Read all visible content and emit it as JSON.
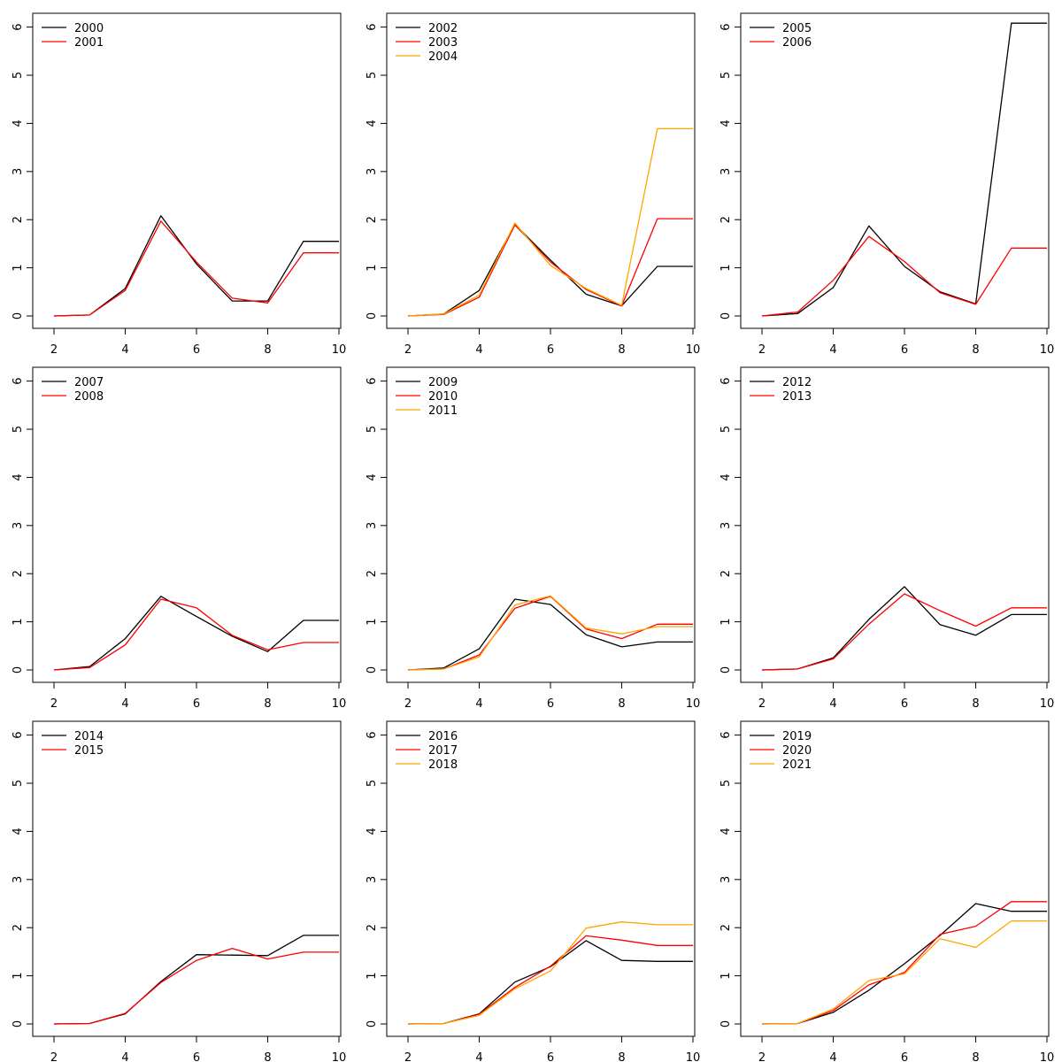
{
  "figure": {
    "rows": 3,
    "cols": 3
  },
  "series_colors": [
    "#000000",
    "#ff0000",
    "#ffa500"
  ],
  "chart_data": [
    {
      "type": "line",
      "x": [
        2,
        3,
        4,
        5,
        6,
        7,
        8,
        9,
        10
      ],
      "xlim": [
        2,
        10
      ],
      "ylim": [
        0,
        6.2
      ],
      "xticks": [
        "2",
        "4",
        "6",
        "8",
        "10"
      ],
      "yticks": [
        "0",
        "1",
        "2",
        "3",
        "4",
        "5",
        "6"
      ],
      "legend_position": "top-left",
      "series": [
        {
          "name": "2000",
          "values": [
            0,
            0.02,
            0.57,
            2.08,
            1.08,
            0.31,
            0.31,
            1.55,
            1.55
          ]
        },
        {
          "name": "2001",
          "values": [
            0,
            0.02,
            0.53,
            1.97,
            1.12,
            0.37,
            0.27,
            1.31,
            1.31
          ]
        }
      ]
    },
    {
      "type": "line",
      "x": [
        2,
        3,
        4,
        5,
        6,
        7,
        8,
        9,
        10
      ],
      "xlim": [
        2,
        10
      ],
      "ylim": [
        0,
        6.2
      ],
      "xticks": [
        "2",
        "4",
        "6",
        "8",
        "10"
      ],
      "yticks": [
        "0",
        "1",
        "2",
        "3",
        "4",
        "5",
        "6"
      ],
      "legend_position": "top-left",
      "series": [
        {
          "name": "2002",
          "values": [
            0,
            0.04,
            0.53,
            1.9,
            1.16,
            0.45,
            0.21,
            1.03,
            1.03
          ]
        },
        {
          "name": "2003",
          "values": [
            0,
            0.03,
            0.39,
            1.89,
            1.12,
            0.55,
            0.21,
            2.02,
            2.02
          ]
        },
        {
          "name": "2004",
          "values": [
            0,
            0.04,
            0.43,
            1.93,
            1.05,
            0.57,
            0.22,
            3.89,
            3.89
          ]
        }
      ]
    },
    {
      "type": "line",
      "x": [
        2,
        3,
        4,
        5,
        6,
        7,
        8,
        9,
        10
      ],
      "xlim": [
        2,
        10
      ],
      "ylim": [
        0,
        6.2
      ],
      "xticks": [
        "2",
        "4",
        "6",
        "8",
        "10"
      ],
      "yticks": [
        "0",
        "1",
        "2",
        "3",
        "4",
        "5",
        "6"
      ],
      "legend_position": "top-left",
      "series": [
        {
          "name": "2005",
          "values": [
            0,
            0.05,
            0.59,
            1.87,
            1.03,
            0.5,
            0.25,
            6.08,
            6.08
          ]
        },
        {
          "name": "2006",
          "values": [
            0,
            0.08,
            0.74,
            1.65,
            1.13,
            0.48,
            0.24,
            1.41,
            1.41
          ]
        }
      ]
    },
    {
      "type": "line",
      "x": [
        2,
        3,
        4,
        5,
        6,
        7,
        8,
        9,
        10
      ],
      "xlim": [
        2,
        10
      ],
      "ylim": [
        0,
        6.2
      ],
      "xticks": [
        "2",
        "4",
        "6",
        "8",
        "10"
      ],
      "yticks": [
        "0",
        "1",
        "2",
        "3",
        "4",
        "5",
        "6"
      ],
      "legend_position": "top-left",
      "series": [
        {
          "name": "2007",
          "values": [
            0,
            0.07,
            0.65,
            1.53,
            1.11,
            0.7,
            0.38,
            1.03,
            1.03
          ]
        },
        {
          "name": "2008",
          "values": [
            0,
            0.05,
            0.52,
            1.47,
            1.29,
            0.72,
            0.42,
            0.57,
            0.57
          ]
        }
      ]
    },
    {
      "type": "line",
      "x": [
        2,
        3,
        4,
        5,
        6,
        7,
        8,
        9,
        10
      ],
      "xlim": [
        2,
        10
      ],
      "ylim": [
        0,
        6.2
      ],
      "xticks": [
        "2",
        "4",
        "6",
        "8",
        "10"
      ],
      "yticks": [
        "0",
        "1",
        "2",
        "3",
        "4",
        "5",
        "6"
      ],
      "legend_position": "top-left",
      "series": [
        {
          "name": "2009",
          "values": [
            0,
            0.04,
            0.44,
            1.47,
            1.36,
            0.73,
            0.48,
            0.58,
            0.58
          ]
        },
        {
          "name": "2010",
          "values": [
            0,
            0.02,
            0.31,
            1.28,
            1.53,
            0.85,
            0.65,
            0.95,
            0.95
          ]
        },
        {
          "name": "2011",
          "values": [
            0,
            0.02,
            0.27,
            1.35,
            1.54,
            0.87,
            0.75,
            0.9,
            0.9
          ]
        }
      ]
    },
    {
      "type": "line",
      "x": [
        2,
        3,
        4,
        5,
        6,
        7,
        8,
        9,
        10
      ],
      "xlim": [
        2,
        10
      ],
      "ylim": [
        0,
        6.2
      ],
      "xticks": [
        "2",
        "4",
        "6",
        "8",
        "10"
      ],
      "yticks": [
        "0",
        "1",
        "2",
        "3",
        "4",
        "5",
        "6"
      ],
      "legend_position": "top-left",
      "series": [
        {
          "name": "2012",
          "values": [
            0,
            0.02,
            0.25,
            1.05,
            1.73,
            0.94,
            0.72,
            1.15,
            1.15
          ]
        },
        {
          "name": "2013",
          "values": [
            0,
            0.02,
            0.23,
            0.95,
            1.58,
            1.23,
            0.91,
            1.29,
            1.29
          ]
        }
      ]
    },
    {
      "type": "line",
      "x": [
        2,
        3,
        4,
        5,
        6,
        7,
        8,
        9,
        10
      ],
      "xlim": [
        2,
        10
      ],
      "ylim": [
        0,
        6.2
      ],
      "xticks": [
        "2",
        "4",
        "6",
        "8",
        "10"
      ],
      "yticks": [
        "0",
        "1",
        "2",
        "3",
        "4",
        "5",
        "6"
      ],
      "legend_position": "top-left",
      "series": [
        {
          "name": "2014",
          "values": [
            0,
            0.01,
            0.21,
            0.88,
            1.44,
            1.43,
            1.42,
            1.84,
            1.84
          ]
        },
        {
          "name": "2015",
          "values": [
            0,
            0.01,
            0.22,
            0.86,
            1.32,
            1.57,
            1.35,
            1.49,
            1.49
          ]
        }
      ]
    },
    {
      "type": "line",
      "x": [
        2,
        3,
        4,
        5,
        6,
        7,
        8,
        9,
        10
      ],
      "xlim": [
        2,
        10
      ],
      "ylim": [
        0,
        6.2
      ],
      "xticks": [
        "2",
        "4",
        "6",
        "8",
        "10"
      ],
      "yticks": [
        "0",
        "1",
        "2",
        "3",
        "4",
        "5",
        "6"
      ],
      "legend_position": "top-left",
      "series": [
        {
          "name": "2016",
          "values": [
            0,
            0.01,
            0.21,
            0.87,
            1.19,
            1.73,
            1.32,
            1.3,
            1.3
          ]
        },
        {
          "name": "2017",
          "values": [
            0,
            0.01,
            0.2,
            0.76,
            1.2,
            1.83,
            1.74,
            1.63,
            1.63
          ]
        },
        {
          "name": "2018",
          "values": [
            0,
            0.01,
            0.18,
            0.73,
            1.1,
            1.99,
            2.12,
            2.06,
            2.06
          ]
        }
      ]
    },
    {
      "type": "line",
      "x": [
        2,
        3,
        4,
        5,
        6,
        7,
        8,
        9,
        10
      ],
      "xlim": [
        2,
        10
      ],
      "ylim": [
        0,
        6.2
      ],
      "xticks": [
        "2",
        "4",
        "6",
        "8",
        "10"
      ],
      "yticks": [
        "0",
        "1",
        "2",
        "3",
        "4",
        "5",
        "6"
      ],
      "legend_position": "top-left",
      "series": [
        {
          "name": "2019",
          "values": [
            0,
            0.01,
            0.24,
            0.7,
            1.25,
            1.84,
            2.5,
            2.34,
            2.34
          ]
        },
        {
          "name": "2020",
          "values": [
            0,
            0.01,
            0.28,
            0.81,
            1.07,
            1.86,
            2.03,
            2.54,
            2.54
          ]
        },
        {
          "name": "2021",
          "values": [
            0,
            0.01,
            0.31,
            0.9,
            1.04,
            1.77,
            1.59,
            2.14,
            2.14
          ]
        }
      ]
    }
  ]
}
